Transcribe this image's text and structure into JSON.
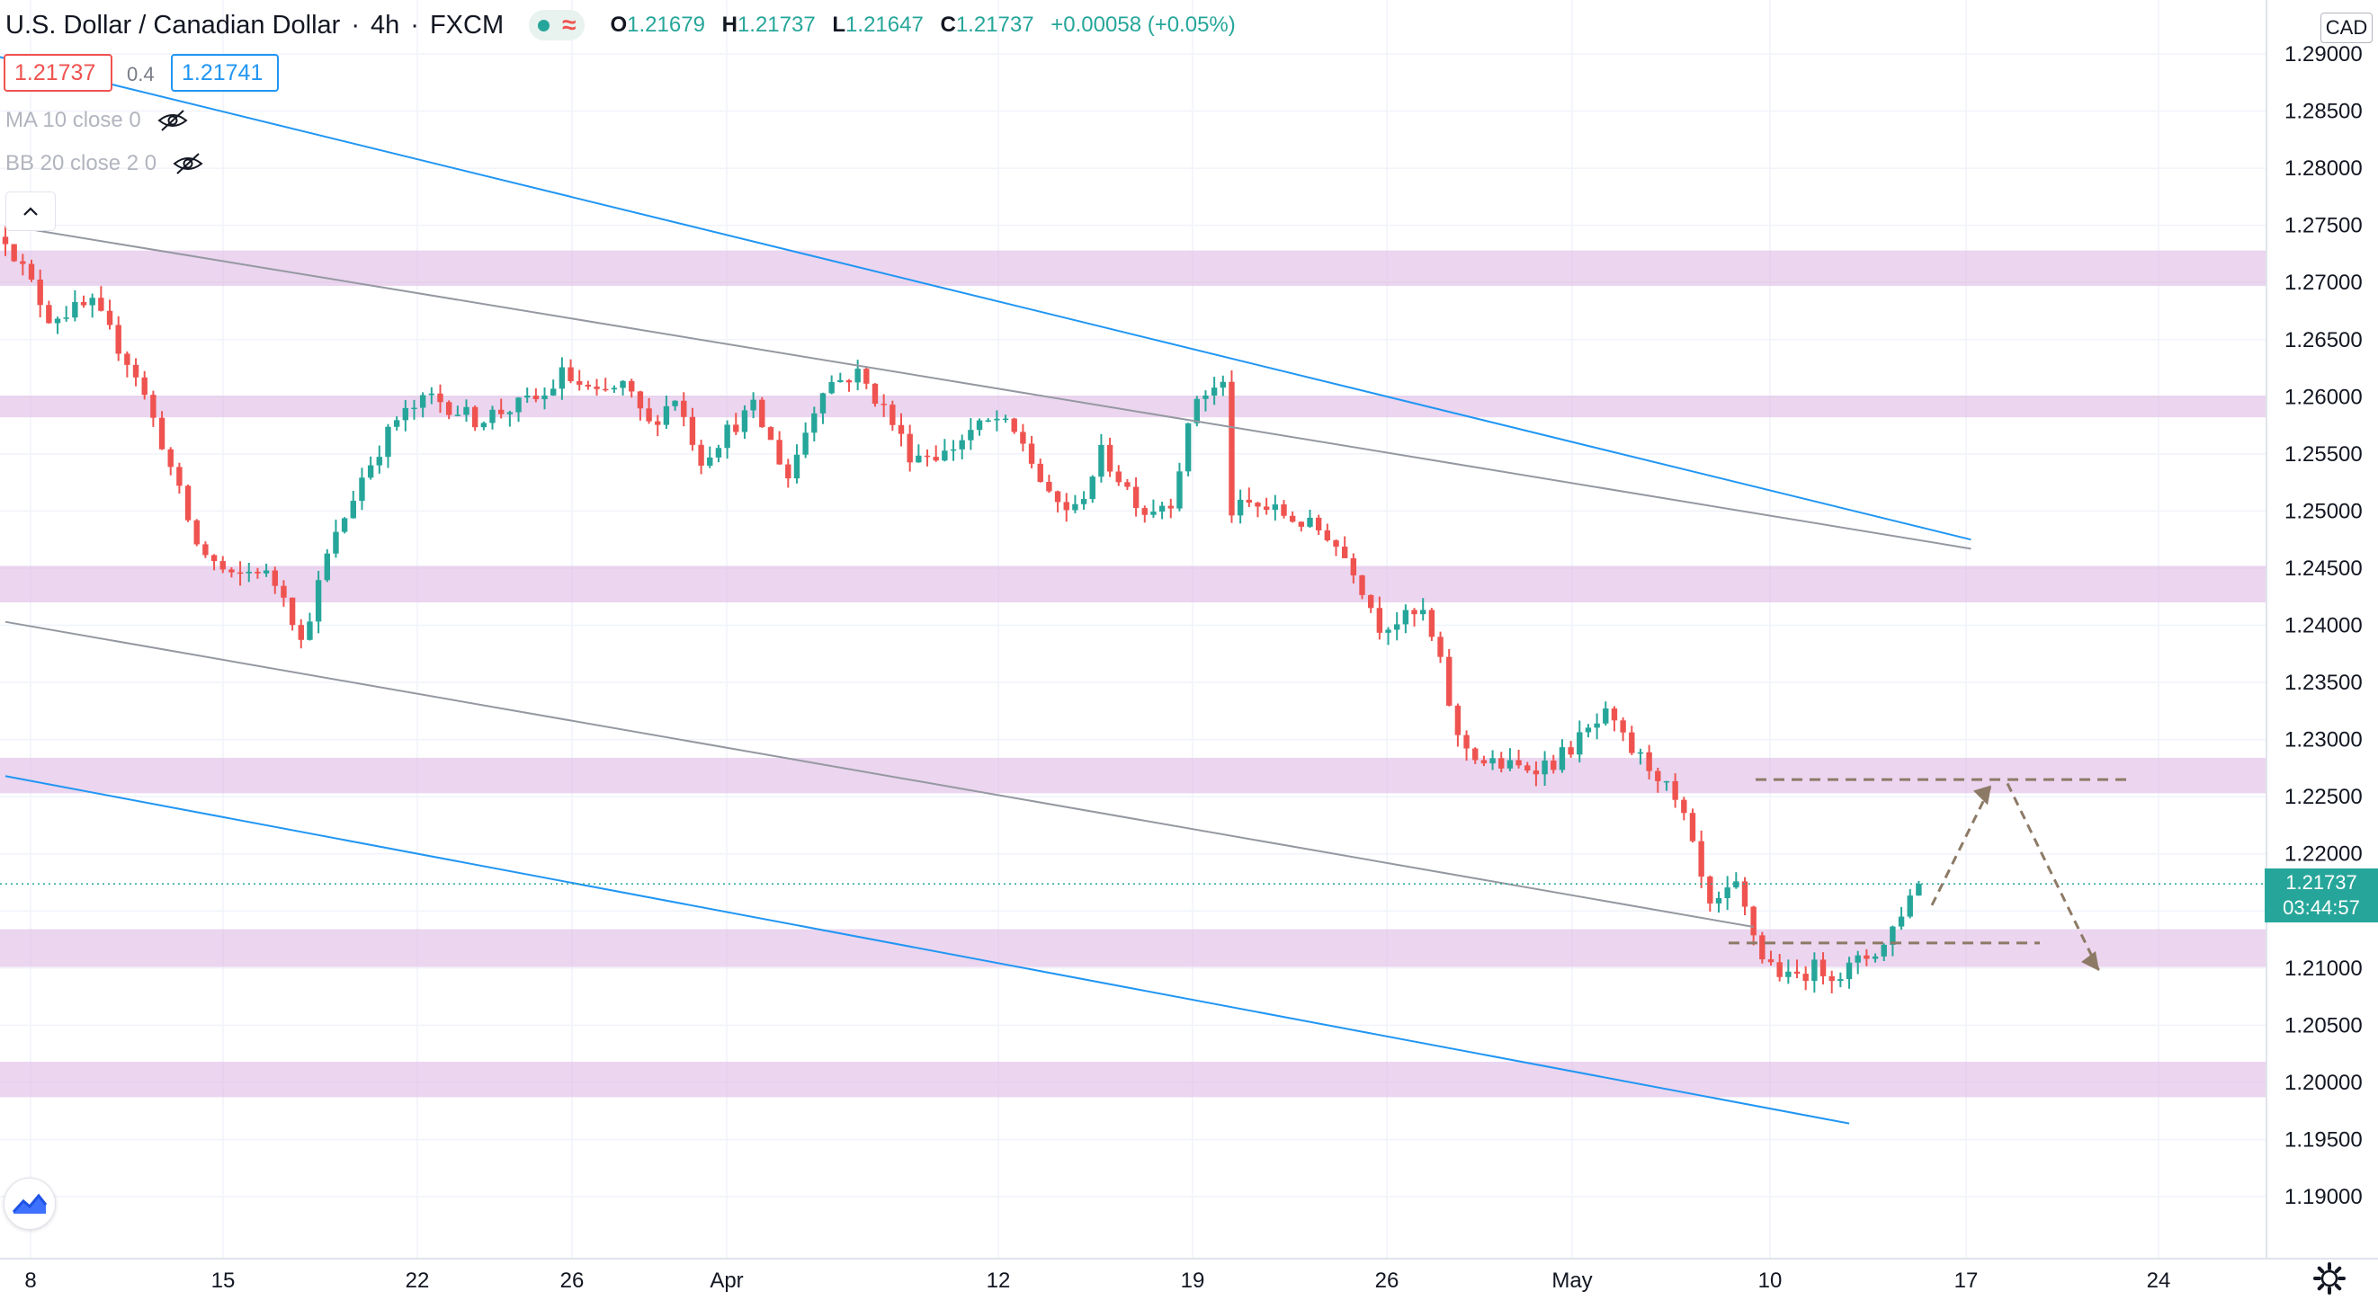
{
  "header": {
    "symbol": "U.S. Dollar / Canadian Dollar",
    "interval": "4h",
    "exchange": "FXCM",
    "wave_glyph": "≈",
    "ohlc": {
      "o_key": "O",
      "o": "1.21679",
      "h_key": "H",
      "h": "1.21737",
      "l_key": "L",
      "l": "1.21647",
      "c_key": "C",
      "c": "1.21737",
      "change": "+0.00058 (+0.05%)"
    },
    "sell_price": "1.21737",
    "spread": "0.4",
    "buy_price": "1.21741"
  },
  "indicators": [
    {
      "label": "MA 10 close 0"
    },
    {
      "label": "BB 20 close 2 0"
    }
  ],
  "price_axis": {
    "currency": "CAD",
    "last_price": "1.21737",
    "countdown": "03:44:57"
  },
  "colors": {
    "up": "#26a69a",
    "down": "#ef5350",
    "zone": "#e1bee7",
    "blue_channel": "#2196f3",
    "gray_channel": "#9598a1",
    "projection": "#8d7a66"
  },
  "chart_data": {
    "type": "candlestick",
    "title": "U.S. Dollar / Canadian Dollar",
    "interval": "4h",
    "y_axis": {
      "ticks": [
        "1.19000",
        "1.19500",
        "1.20000",
        "1.20500",
        "1.21000",
        "1.21500",
        "1.22000",
        "1.22500",
        "1.23000",
        "1.23500",
        "1.24000",
        "1.24500",
        "1.25000",
        "1.25500",
        "1.26000",
        "1.26500",
        "1.27000",
        "1.27500",
        "1.28000",
        "1.28500",
        "1.29000"
      ],
      "range": [
        1.186,
        1.2975
      ]
    },
    "x_axis": {
      "ticks": [
        "8",
        "15",
        "22",
        "26",
        "Apr",
        "12",
        "19",
        "26",
        "May",
        "10",
        "17",
        "24"
      ]
    },
    "bars": [
      120,
      190,
      64
    ],
    "keypoints": [
      [
        0,
        1.274
      ],
      [
        5,
        1.267
      ],
      [
        10,
        1.268
      ],
      [
        15,
        1.262
      ],
      [
        18,
        1.256
      ],
      [
        22,
        1.247
      ],
      [
        26,
        1.244
      ],
      [
        29,
        1.245
      ],
      [
        32,
        1.243
      ],
      [
        34,
        1.2385
      ],
      [
        37,
        1.246
      ],
      [
        41,
        1.253
      ],
      [
        45,
        1.258
      ],
      [
        49,
        1.26
      ],
      [
        54,
        1.258
      ],
      [
        58,
        1.259
      ],
      [
        62,
        1.26
      ],
      [
        64,
        1.262
      ],
      [
        68,
        1.26
      ],
      [
        71,
        1.261
      ],
      [
        74,
        1.2575
      ],
      [
        77,
        1.26
      ],
      [
        80,
        1.2545
      ],
      [
        83,
        1.257
      ],
      [
        86,
        1.259
      ],
      [
        90,
        1.253
      ],
      [
        94,
        1.261
      ],
      [
        98,
        1.262
      ],
      [
        101,
        1.259
      ],
      [
        104,
        1.255
      ],
      [
        108,
        1.255
      ],
      [
        111,
        1.257
      ],
      [
        114,
        1.258
      ],
      [
        117,
        1.256
      ],
      [
        120,
        1.251
      ],
      [
        123,
        1.25
      ],
      [
        126,
        1.255
      ],
      [
        128,
        1.253
      ],
      [
        131,
        1.25
      ],
      [
        134,
        1.251
      ],
      [
        137,
        1.26
      ],
      [
        140,
        1.261
      ],
      [
        141,
        1.25
      ],
      [
        143,
        1.2505
      ],
      [
        146,
        1.25
      ],
      [
        149,
        1.249
      ],
      [
        152,
        1.248
      ],
      [
        155,
        1.245
      ],
      [
        158,
        1.24
      ],
      [
        163,
        1.241
      ],
      [
        165,
        1.2365
      ],
      [
        167,
        1.23
      ],
      [
        170,
        1.228
      ],
      [
        174,
        1.2275
      ],
      [
        178,
        1.228
      ],
      [
        181,
        1.23
      ],
      [
        184,
        1.232
      ],
      [
        187,
        1.229
      ],
      [
        190,
        1.227
      ],
      [
        193,
        1.223
      ],
      [
        196,
        1.215
      ],
      [
        199,
        1.217
      ],
      [
        202,
        1.211
      ],
      [
        205,
        1.209
      ],
      [
        208,
        1.21
      ],
      [
        211,
        1.2095
      ],
      [
        214,
        1.211
      ],
      [
        216,
        1.212
      ],
      [
        218,
        1.215
      ],
      [
        220,
        1.2174
      ]
    ],
    "last_close": 1.21737,
    "support_resistance_zones": [
      [
        1.2697,
        1.2728
      ],
      [
        1.2582,
        1.2601
      ],
      [
        1.242,
        1.2452
      ],
      [
        1.2253,
        1.2284
      ],
      [
        1.2101,
        1.2134
      ],
      [
        1.1987,
        1.2018
      ]
    ],
    "trendlines": [
      {
        "style": "blue",
        "from": [
          -1,
          1.2898
        ],
        "to": [
          226,
          1.2475
        ]
      },
      {
        "style": "gray",
        "from": [
          0,
          1.275
        ],
        "to": [
          226,
          1.2467
        ]
      },
      {
        "style": "gray",
        "from": [
          0,
          1.2403
        ],
        "to": [
          201,
          1.2136
        ]
      },
      {
        "style": "blue",
        "from": [
          0,
          1.2268
        ],
        "to": [
          212,
          1.1964
        ]
      }
    ],
    "projection": {
      "upper_level": 1.2265,
      "lower_level": 1.2122,
      "path": [
        [
          193,
          1.2155
        ],
        [
          197,
          1.226
        ],
        [
          202,
          1.2125
        ]
      ]
    }
  }
}
